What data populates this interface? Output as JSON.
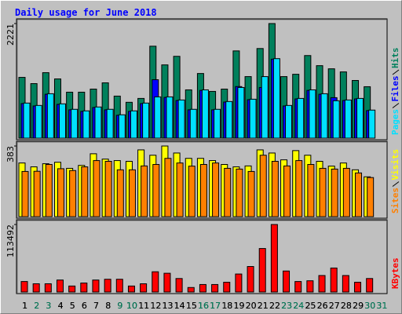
{
  "chart_data": [
    {
      "type": "bar",
      "title": "Daily usage for June 2018",
      "categories": [
        "1",
        "2",
        "3",
        "4",
        "5",
        "6",
        "7",
        "8",
        "9",
        "10",
        "11",
        "12",
        "13",
        "14",
        "15",
        "16",
        "17",
        "18",
        "19",
        "20",
        "21",
        "22",
        "23",
        "24",
        "25",
        "26",
        "27",
        "28",
        "29",
        "30",
        "31"
      ],
      "series": [
        {
          "name": "Hits",
          "color": "#00805c",
          "values": [
            1178,
            1057,
            1269,
            1148,
            891,
            891,
            951,
            1072,
            815,
            695,
            770,
            1782,
            1420,
            1586,
            936,
            1253,
            906,
            951,
            1691,
            1193,
            1737,
            2221,
            1193,
            1238,
            1601,
            1405,
            1344,
            1284,
            1118,
            997,
            0
          ]
        },
        {
          "name": "Files",
          "color": "#0000ff",
          "values": [
            670,
            624,
            851,
            655,
            549,
            519,
            594,
            549,
            443,
            519,
            670,
            1133,
            790,
            730,
            549,
            926,
            549,
            700,
            1000,
            745,
            982,
            1531,
            624,
            760,
            926,
            851,
            785,
            730,
            760,
            534,
            0
          ]
        },
        {
          "name": "Pages",
          "color": "#00e0ff",
          "values": [
            680,
            634,
            861,
            665,
            559,
            529,
            604,
            559,
            453,
            529,
            680,
            800,
            800,
            740,
            559,
            936,
            559,
            710,
            982,
            755,
            1193,
            1541,
            634,
            770,
            936,
            861,
            725,
            740,
            770,
            544,
            0
          ]
        }
      ],
      "ylim": [
        0,
        2221
      ],
      "yticks": [
        2221
      ]
    },
    {
      "type": "bar",
      "series": [
        {
          "name": "Visits",
          "color": "#ffff00",
          "values": [
            291,
            270,
            287,
            295,
            262,
            278,
            341,
            312,
            304,
            300,
            362,
            333,
            383,
            345,
            316,
            316,
            304,
            283,
            270,
            275,
            362,
            345,
            308,
            358,
            333,
            300,
            274,
            291,
            254,
            216,
            0
          ]
        },
        {
          "name": "Sites",
          "color": "#ff8000",
          "values": [
            245,
            246,
            283,
            260,
            250,
            270,
            304,
            300,
            254,
            254,
            275,
            283,
            316,
            291,
            274,
            283,
            291,
            262,
            258,
            245,
            333,
            300,
            275,
            304,
            283,
            262,
            258,
            262,
            237,
            212,
            0
          ]
        }
      ],
      "ylim": [
        0,
        383
      ],
      "yticks": [
        383
      ]
    },
    {
      "type": "bar",
      "categories": [
        "1",
        "2",
        "3",
        "4",
        "5",
        "6",
        "7",
        "8",
        "9",
        "10",
        "11",
        "12",
        "13",
        "14",
        "15",
        "16",
        "17",
        "18",
        "19",
        "20",
        "21",
        "22",
        "23",
        "24",
        "25",
        "26",
        "27",
        "28",
        "29",
        "30",
        "31"
      ],
      "category_colors": [
        "#000000",
        "#00805c",
        "#00805c",
        "#000000",
        "#000000",
        "#000000",
        "#000000",
        "#000000",
        "#00805c",
        "#00805c",
        "#000000",
        "#000000",
        "#000000",
        "#000000",
        "#000000",
        "#00805c",
        "#00805c",
        "#000000",
        "#000000",
        "#000000",
        "#000000",
        "#000000",
        "#00805c",
        "#00805c",
        "#000000",
        "#000000",
        "#000000",
        "#000000",
        "#000000",
        "#00805c",
        "#00805c"
      ],
      "series": [
        {
          "name": "KBytes",
          "color": "#ff0000",
          "values": [
            17656,
            13870,
            13870,
            20170,
            10090,
            15130,
            20170,
            21440,
            21440,
            10090,
            13870,
            34050,
            31530,
            22700,
            7570,
            12610,
            12610,
            16390,
            30270,
            42880,
            73150,
            113492,
            35310,
            17656,
            18910,
            27740,
            40350,
            27740,
            16390,
            22700,
            0
          ]
        }
      ],
      "ylim": [
        0,
        113492
      ],
      "yticks": [
        113492
      ]
    }
  ]
}
